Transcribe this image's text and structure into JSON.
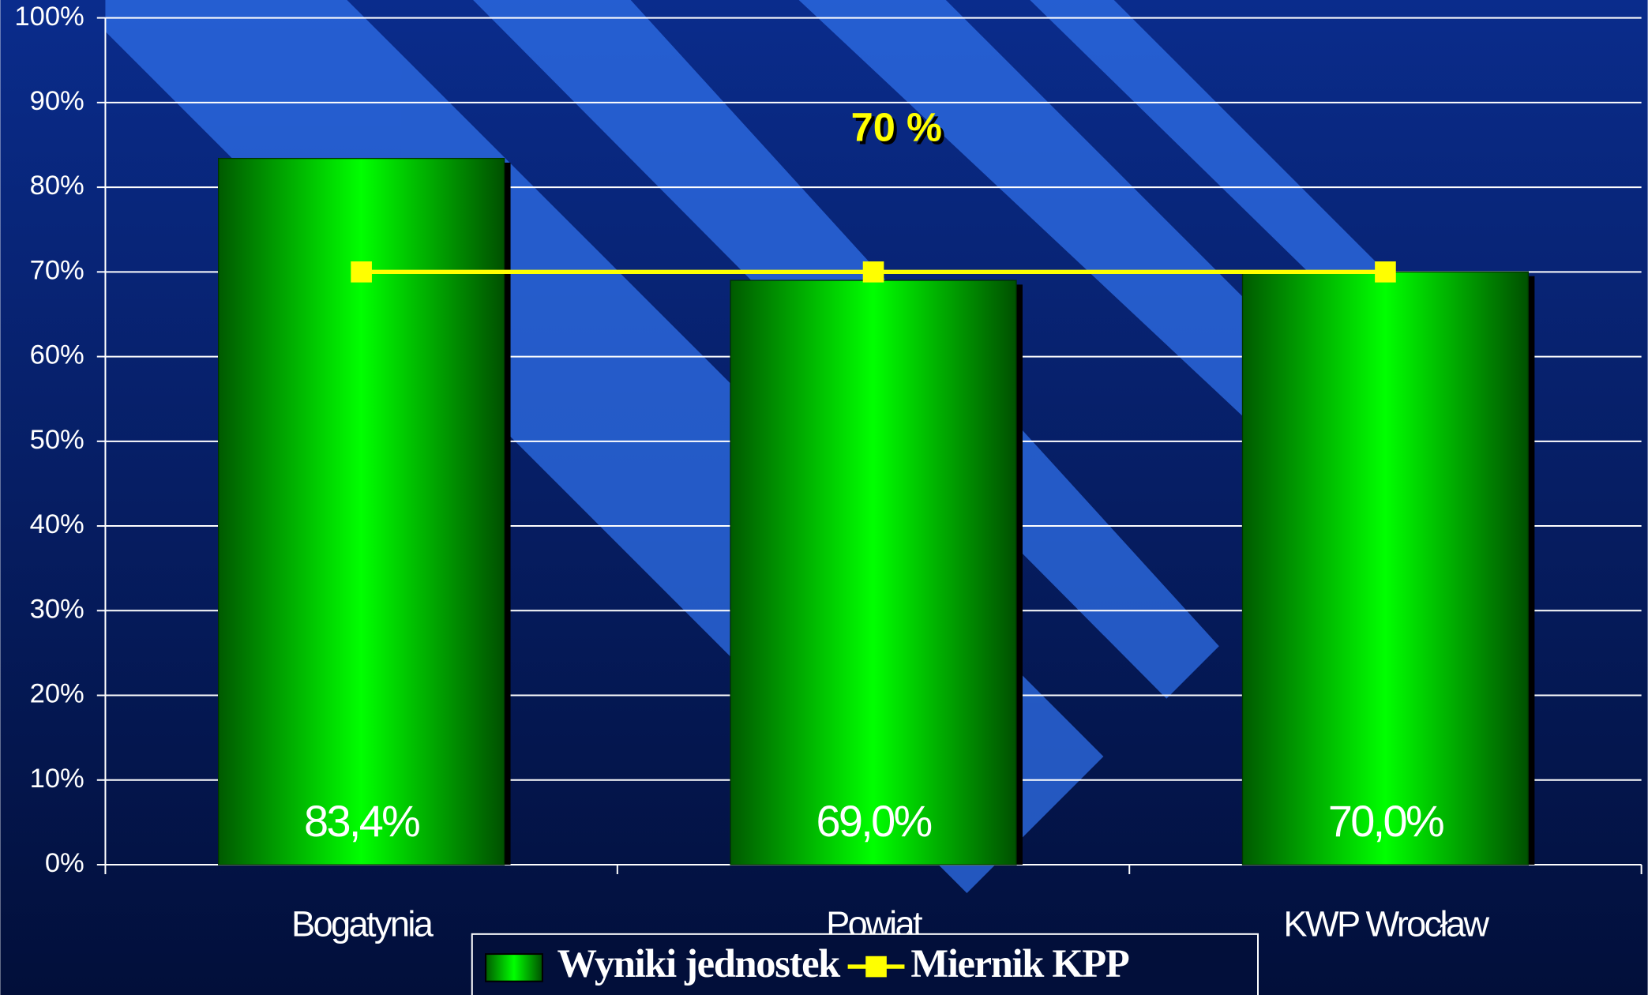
{
  "chart_data": {
    "type": "bar",
    "categories": [
      "Bogatynia",
      "Powiat",
      "KWP Wrocław"
    ],
    "series": [
      {
        "name": "Wyniki jednostek",
        "type": "bar",
        "color": "#00ff00",
        "values": [
          83.4,
          69.0,
          70.0
        ],
        "value_labels": [
          "83,4%",
          "69,0%",
          "70,0%"
        ]
      },
      {
        "name": "Miernik KPP",
        "type": "line",
        "color": "#ffff00",
        "values": [
          70,
          70,
          70
        ]
      }
    ],
    "annotation": "70 %",
    "ylim": [
      0,
      100
    ],
    "yticks": [
      {
        "value": 0,
        "label": "0%"
      },
      {
        "value": 10,
        "label": "10%"
      },
      {
        "value": 20,
        "label": "20%"
      },
      {
        "value": 30,
        "label": "30%"
      },
      {
        "value": 40,
        "label": "40%"
      },
      {
        "value": 50,
        "label": "50%"
      },
      {
        "value": 60,
        "label": "60%"
      },
      {
        "value": 70,
        "label": "70%"
      },
      {
        "value": 80,
        "label": "80%"
      },
      {
        "value": 90,
        "label": "90%"
      },
      {
        "value": 100,
        "label": "100%"
      }
    ],
    "grid": true
  }
}
